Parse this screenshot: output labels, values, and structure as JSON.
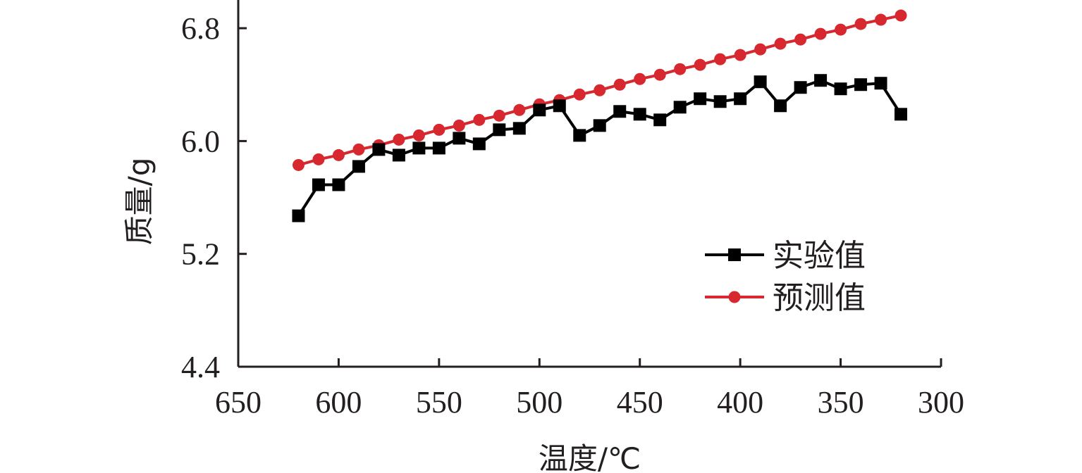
{
  "chart_data": {
    "type": "line",
    "xlabel": "温度/℃",
    "ylabel": "质量/g",
    "xlim": [
      650,
      300
    ],
    "ylim": [
      4.4,
      7.0
    ],
    "xticks": [
      650,
      600,
      550,
      500,
      450,
      400,
      350,
      300
    ],
    "xtick_labels": [
      "650",
      "600",
      "550",
      "500",
      "450",
      "400",
      "350",
      "300"
    ],
    "yticks": [
      4.4,
      5.2,
      6.0,
      6.8
    ],
    "ytick_labels": [
      "4.4",
      "5.2",
      "6.0",
      "6.8"
    ],
    "legend_position": "lower-right",
    "x": [
      620,
      610,
      600,
      590,
      580,
      570,
      560,
      550,
      540,
      530,
      520,
      510,
      500,
      490,
      480,
      470,
      460,
      450,
      440,
      430,
      420,
      410,
      400,
      390,
      380,
      370,
      360,
      350,
      340,
      330,
      320
    ],
    "series": [
      {
        "name": "实验值",
        "color": "#000000",
        "marker": "square",
        "values": [
          5.47,
          5.69,
          5.69,
          5.82,
          5.94,
          5.9,
          5.95,
          5.95,
          6.02,
          5.98,
          6.08,
          6.09,
          6.22,
          6.25,
          6.04,
          6.11,
          6.21,
          6.19,
          6.15,
          6.24,
          6.3,
          6.28,
          6.3,
          6.42,
          6.25,
          6.38,
          6.43,
          6.37,
          6.4,
          6.41,
          6.19
        ]
      },
      {
        "name": "预测值",
        "color": "#d7282f",
        "marker": "circle",
        "values": [
          5.83,
          5.87,
          5.9,
          5.94,
          5.97,
          6.01,
          6.04,
          6.08,
          6.11,
          6.15,
          6.18,
          6.22,
          6.26,
          6.29,
          6.33,
          6.36,
          6.4,
          6.44,
          6.47,
          6.51,
          6.54,
          6.58,
          6.61,
          6.65,
          6.69,
          6.72,
          6.76,
          6.79,
          6.83,
          6.86,
          6.89
        ]
      }
    ]
  }
}
